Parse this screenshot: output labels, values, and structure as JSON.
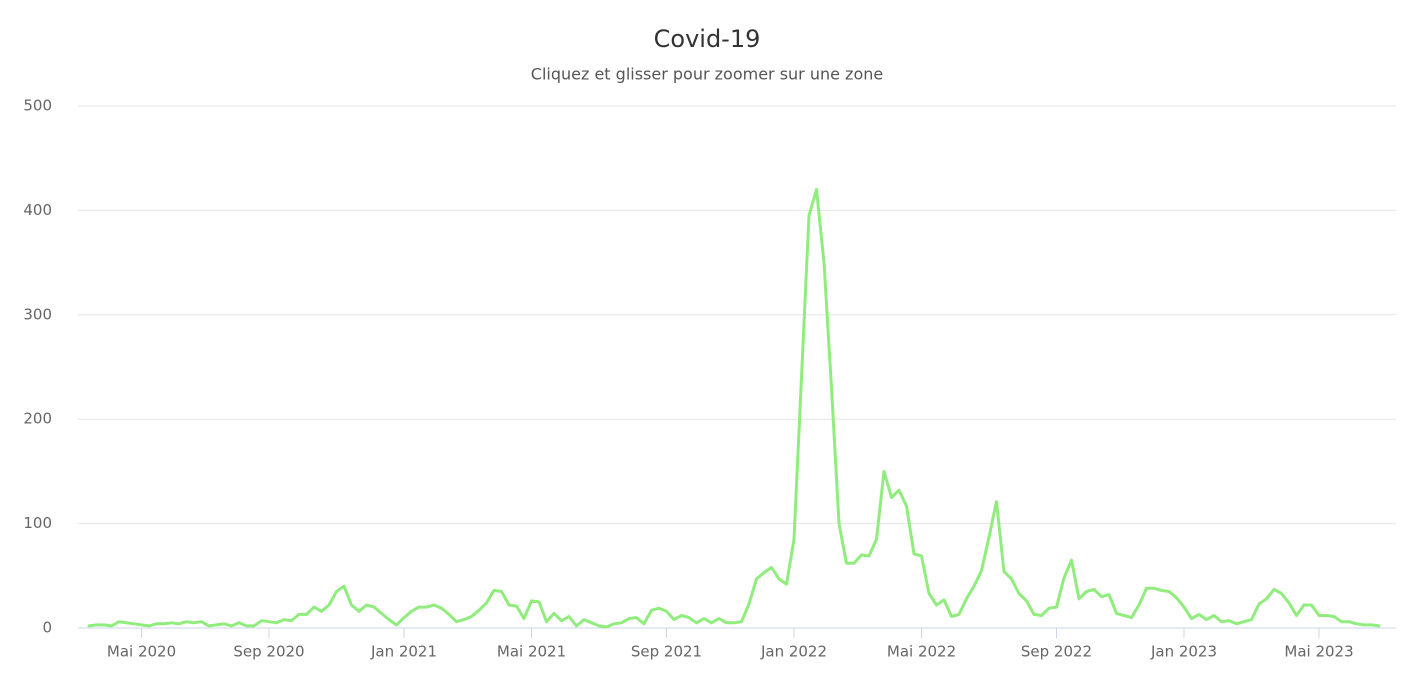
{
  "chart_data": {
    "type": "line",
    "title": "Covid-19",
    "subtitle": "Cliquez et glisser pour zoomer sur une zone",
    "categories": [
      null,
      null,
      null,
      null,
      null,
      null,
      null,
      "Mai 2020",
      null,
      null,
      null,
      null,
      null,
      null,
      null,
      null,
      null,
      null,
      null,
      null,
      null,
      null,
      null,
      null,
      "Sep 2020",
      null,
      null,
      null,
      null,
      null,
      null,
      null,
      null,
      null,
      null,
      null,
      null,
      null,
      null,
      null,
      null,
      null,
      "Jan 2021",
      null,
      null,
      null,
      null,
      null,
      null,
      null,
      null,
      null,
      null,
      null,
      null,
      null,
      null,
      null,
      null,
      "Mai 2021",
      null,
      null,
      null,
      null,
      null,
      null,
      null,
      null,
      null,
      null,
      null,
      null,
      null,
      null,
      null,
      null,
      null,
      "Sep 2021",
      null,
      null,
      null,
      null,
      null,
      null,
      null,
      null,
      null,
      null,
      null,
      null,
      null,
      null,
      null,
      null,
      "Jan 2022",
      null,
      null,
      null,
      null,
      null,
      null,
      null,
      null,
      null,
      null,
      null,
      null,
      null,
      null,
      null,
      null,
      "Mai 2022",
      null,
      null,
      null,
      null,
      null,
      null,
      null,
      null,
      null,
      null,
      null,
      null,
      null,
      null,
      null,
      null,
      null,
      "Sep 2022",
      null,
      null,
      null,
      null,
      null,
      null,
      null,
      null,
      null,
      null,
      null,
      null,
      null,
      null,
      null,
      null,
      "Jan 2023",
      null,
      null,
      null,
      null,
      null,
      null,
      null,
      null,
      null,
      null,
      null,
      null,
      null,
      null,
      null,
      null,
      null,
      "Mai 2023",
      null,
      null,
      null,
      null,
      null,
      null,
      null,
      null
    ],
    "series": [
      {
        "name": "Covid-19",
        "color": "#90ed7d",
        "values": [
          2,
          3,
          3,
          2,
          6,
          5,
          4,
          3,
          2,
          4,
          4,
          5,
          4,
          6,
          5,
          6,
          2,
          3,
          4,
          2,
          5,
          2,
          2,
          7,
          6,
          5,
          8,
          7,
          13,
          13,
          20,
          16,
          22,
          35,
          40,
          22,
          16,
          22,
          20,
          14,
          8,
          3,
          10,
          16,
          20,
          20,
          22,
          19,
          13,
          6,
          8,
          11,
          17,
          24,
          36,
          35,
          22,
          21,
          9,
          26,
          25,
          6,
          14,
          7,
          11,
          2,
          8,
          5,
          2,
          1,
          4,
          5,
          9,
          10,
          4,
          17,
          19,
          16,
          8,
          12,
          10,
          5,
          9,
          5,
          9,
          5,
          5,
          6,
          23,
          47,
          53,
          58,
          47,
          42,
          85,
          240,
          395,
          420,
          350,
          230,
          100,
          62,
          62,
          70,
          69,
          85,
          150,
          125,
          132,
          117,
          71,
          69,
          33,
          22,
          27,
          11,
          13,
          28,
          40,
          55,
          87,
          121,
          54,
          47,
          33,
          26,
          13,
          12,
          19,
          20,
          48,
          65,
          28,
          35,
          37,
          30,
          32,
          14,
          12,
          10,
          22,
          38,
          38,
          36,
          35,
          29,
          20,
          9,
          13,
          8,
          12,
          6,
          7,
          4,
          6,
          8,
          23,
          28,
          37,
          33,
          24,
          12,
          22,
          22,
          12,
          12,
          11,
          6,
          6,
          4,
          3,
          3,
          2
        ]
      }
    ],
    "ylim": [
      0,
      500
    ],
    "yticks": [
      0,
      100,
      200,
      300,
      400,
      500
    ],
    "grid": true,
    "legend": false
  }
}
